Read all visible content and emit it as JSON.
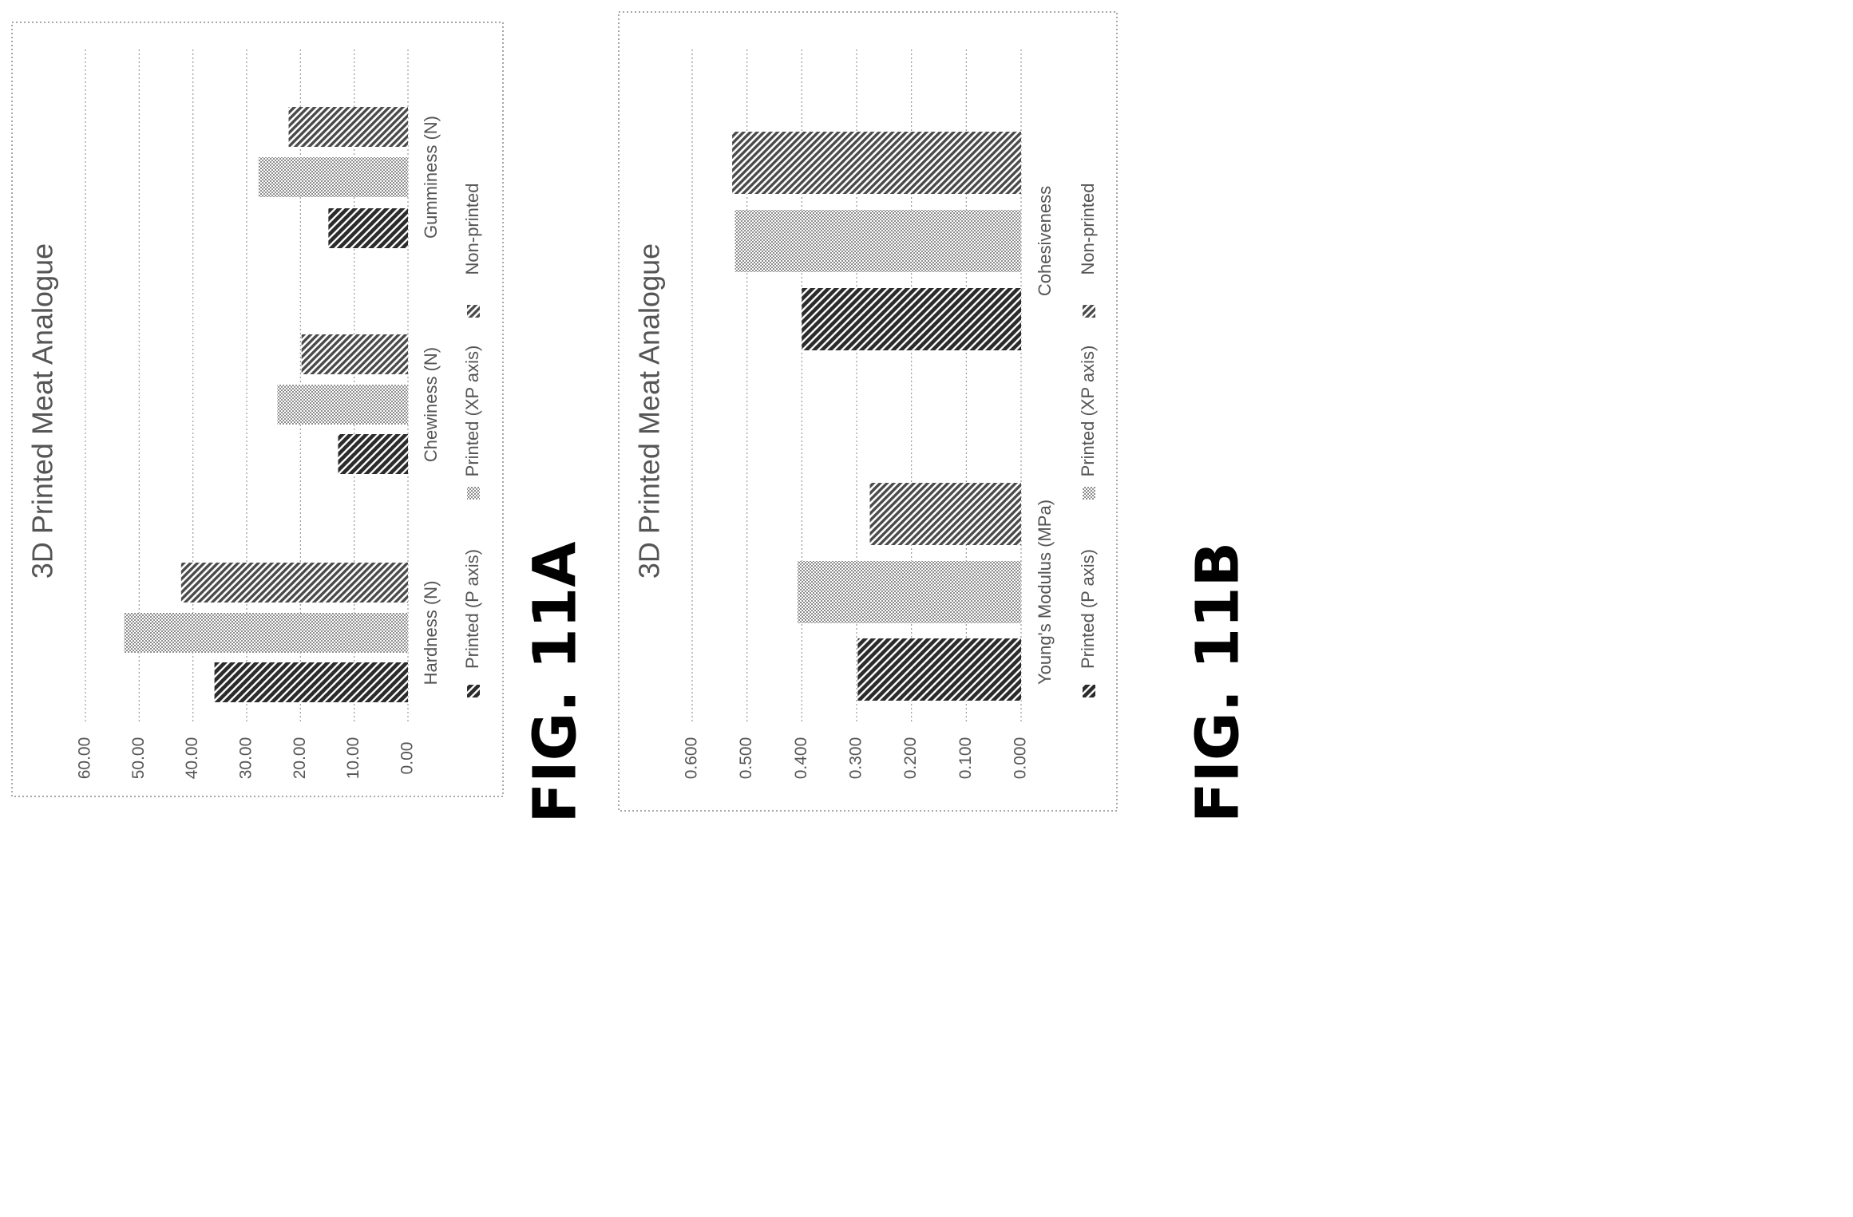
{
  "chart_data": [
    {
      "type": "bar",
      "figure_label": "FIG. 11A",
      "title": "3D Printed Meat Analogue",
      "categories": [
        "Hardness (N)",
        "Chewiness (N)",
        "Gumminess (N)"
      ],
      "series": [
        {
          "name": "Printed (P axis)",
          "values": [
            36.0,
            13.0,
            14.8
          ]
        },
        {
          "name": "Printed (XP axis)",
          "values": [
            52.8,
            24.3,
            27.8
          ]
        },
        {
          "name": "Non-printed",
          "values": [
            42.2,
            19.8,
            22.2
          ]
        }
      ],
      "yticks": [
        "0.00",
        "10.00",
        "20.00",
        "30.00",
        "40.00",
        "50.00",
        "60.00"
      ],
      "ylim": [
        0,
        60
      ],
      "grid": true,
      "legend_position": "bottom",
      "orientation": "rotated-90-ccw"
    },
    {
      "type": "bar",
      "figure_label": "FIG. 11B",
      "title": "3D Printed Meat Analogue",
      "categories": [
        "Young's Modulus (MPa)",
        "Cohesiveness"
      ],
      "series": [
        {
          "name": "Printed (P axis)",
          "values": [
            0.298,
            0.4
          ]
        },
        {
          "name": "Printed (XP axis)",
          "values": [
            0.408,
            0.522
          ]
        },
        {
          "name": "Non-printed",
          "values": [
            0.276,
            0.527
          ]
        }
      ],
      "yticks": [
        "0.000",
        "0.100",
        "0.200",
        "0.300",
        "0.400",
        "0.500",
        "0.600"
      ],
      "ylim": [
        0,
        0.6
      ],
      "grid": true,
      "legend_position": "bottom",
      "orientation": "rotated-90-ccw"
    }
  ],
  "colors": {
    "series_dark": "#2b2b2b",
    "series_light": "#a8a8a8",
    "series_mid": "#4a4a4a",
    "text": "#555555",
    "grid": "#9a9a9a",
    "frame": "#8a8a8a"
  }
}
